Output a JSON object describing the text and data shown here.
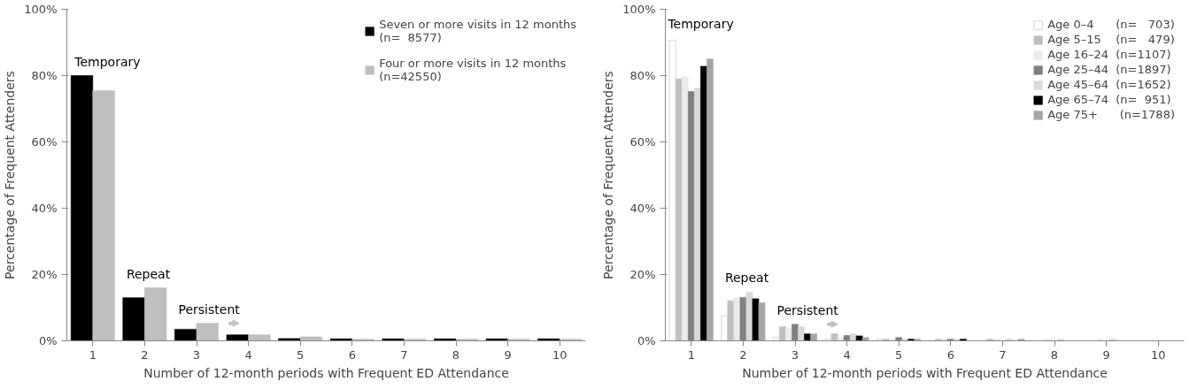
{
  "chart_data": [
    {
      "type": "bar",
      "categories": [
        "1",
        "2",
        "3",
        "4",
        "5",
        "6",
        "7",
        "8",
        "9",
        "10"
      ],
      "xlabel": "Number of 12-month periods with Frequent ED Attendance",
      "ylabel": "Percentage of Frequent Attenders",
      "ylim": [
        0,
        100
      ],
      "yticks": [
        {
          "value": 0,
          "label": "0%"
        },
        {
          "value": 20,
          "label": "20%"
        },
        {
          "value": 40,
          "label": "40%"
        },
        {
          "value": 60,
          "label": "60%"
        },
        {
          "value": 80,
          "label": "80%"
        },
        {
          "value": 100,
          "label": "100%"
        }
      ],
      "grid": false,
      "legend": "top right",
      "series": [
        {
          "name": "Seven or more visits in 12 months\n(n=  8577)",
          "color": "#000000",
          "values": [
            80,
            13,
            3.5,
            1.8,
            0.7,
            0.6,
            0.6,
            0.6,
            0.6,
            0.6
          ]
        },
        {
          "name": "Four or more visits in 12 months\n(n=42550)",
          "color": "#bfbfbf",
          "values": [
            75.5,
            16,
            5.3,
            1.8,
            1.2,
            0.5,
            0.5,
            0.5,
            0.5,
            0.5
          ]
        }
      ],
      "annotations": [
        {
          "text": "Temporary",
          "x": "1",
          "y": 80
        },
        {
          "text": "Repeat",
          "x": "2",
          "y": 16
        },
        {
          "text": "Persistent",
          "x": "3",
          "y": 5.3
        }
      ]
    },
    {
      "type": "bar",
      "categories": [
        "1",
        "2",
        "3",
        "4",
        "5",
        "6",
        "7",
        "8",
        "9",
        "10"
      ],
      "xlabel": "Number of 12-month periods with Frequent ED Attendance",
      "ylabel": "Percentage of Frequent Attenders",
      "ylim": [
        0,
        100
      ],
      "yticks": [
        {
          "value": 0,
          "label": "0%"
        },
        {
          "value": 20,
          "label": "20%"
        },
        {
          "value": 40,
          "label": "40%"
        },
        {
          "value": 60,
          "label": "60%"
        },
        {
          "value": 80,
          "label": "80%"
        },
        {
          "value": 100,
          "label": "100%"
        }
      ],
      "grid": false,
      "legend": "top right",
      "series": [
        {
          "name": "Age 0–4      (n=   703)",
          "color": "#ffffff",
          "values": [
            90.6,
            7.6,
            1.0,
            0.5,
            0.5,
            0,
            0,
            0,
            0,
            0
          ]
        },
        {
          "name": "Age 5–15    (n=   479)",
          "color": "#bfbfbf",
          "values": [
            79,
            12.1,
            4.3,
            2.1,
            0.5,
            0.5,
            0.5,
            0,
            0,
            0
          ]
        },
        {
          "name": "Age 16–24  (n=1107)",
          "color": "#ebebeb",
          "values": [
            79.6,
            13.1,
            3.8,
            1.0,
            0.5,
            0.5,
            0.5,
            0.5,
            0.5,
            0
          ]
        },
        {
          "name": "Age 25–44  (n=1897)",
          "color": "#808080",
          "values": [
            75.2,
            13.1,
            5.0,
            1.6,
            1.0,
            0.5,
            0,
            0,
            0,
            0
          ]
        },
        {
          "name": "Age 45–64  (n=1652)",
          "color": "#d9d9d9",
          "values": [
            76.2,
            14.7,
            4.3,
            2.1,
            0.5,
            0.5,
            0.5,
            0.5,
            0.5,
            0
          ]
        },
        {
          "name": "Age 65–74  (n=  951)",
          "color": "#000000",
          "values": [
            82.8,
            12.7,
            2.1,
            1.5,
            0.5,
            0.5,
            0,
            0,
            0,
            0
          ]
        },
        {
          "name": "Age 75+      (n=1788)",
          "color": "#a6a6a6",
          "values": [
            85,
            11.5,
            2.1,
            1.0,
            0.5,
            0,
            0.5,
            0,
            0,
            0
          ]
        }
      ],
      "annotations": [
        "Temporary",
        {
          "text": "Repeat",
          "x": "2",
          "y": 14.7
        },
        {
          "text": "Persistent",
          "x": "3",
          "y": 5.0
        }
      ]
    }
  ]
}
